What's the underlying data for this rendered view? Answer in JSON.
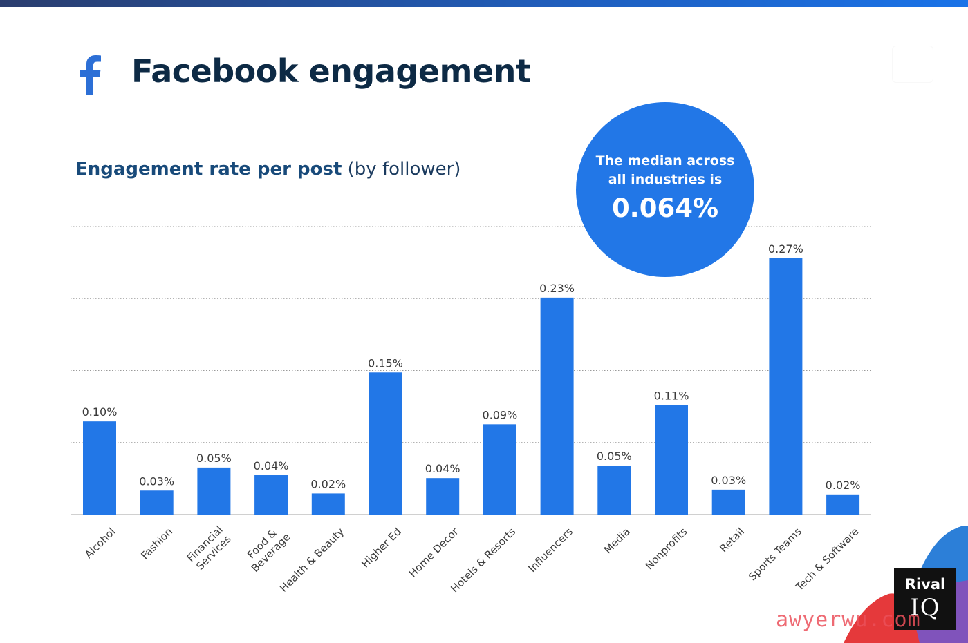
{
  "header": {
    "title": "Facebook engagement",
    "icon": "facebook-icon",
    "brand_color": "#2c6fd6"
  },
  "subtitle": {
    "strong": "Engagement rate per post",
    "normal": " (by follower)"
  },
  "median_callout": {
    "text": "The median across all industries is",
    "value": "0.064%",
    "color": "#2277e7"
  },
  "branding": {
    "logo_top": "Rival",
    "logo_bottom": "IQ",
    "watermark": "awyerwu.com"
  },
  "chart_data": {
    "type": "bar",
    "title": "Engagement rate per post (by follower)",
    "categories": [
      "Alcohol",
      "Fashion",
      "Financial Services",
      "Food & Beverage",
      "Health & Beauty",
      "Higher Ed",
      "Home Decor",
      "Hotels & Resorts",
      "Influencers",
      "Media",
      "Nonprofits",
      "Retail",
      "Sports Teams",
      "Tech & Software"
    ],
    "category_lines": [
      [
        "Alcohol"
      ],
      [
        "Fashion"
      ],
      [
        "Financial",
        "Services"
      ],
      [
        "Food &",
        "Beverage"
      ],
      [
        "Health & Beauty"
      ],
      [
        "Higher Ed"
      ],
      [
        "Home Decor"
      ],
      [
        "Hotels & Resorts"
      ],
      [
        "Influencers"
      ],
      [
        "Media"
      ],
      [
        "Nonprofits"
      ],
      [
        "Retail"
      ],
      [
        "Sports Teams"
      ],
      [
        "Tech & Software"
      ]
    ],
    "values": [
      0.097,
      0.025,
      0.049,
      0.041,
      0.022,
      0.148,
      0.038,
      0.094,
      0.226,
      0.051,
      0.114,
      0.026,
      0.267,
      0.021
    ],
    "value_labels": [
      "0.10%",
      "0.03%",
      "0.05%",
      "0.04%",
      "0.02%",
      "0.15%",
      "0.04%",
      "0.09%",
      "0.23%",
      "0.05%",
      "0.11%",
      "0.03%",
      "0.27%",
      "0.02%"
    ],
    "ylim": [
      0,
      0.3
    ],
    "grid": true,
    "bar_color": "#2277e7",
    "xlabel": "",
    "ylabel": ""
  }
}
